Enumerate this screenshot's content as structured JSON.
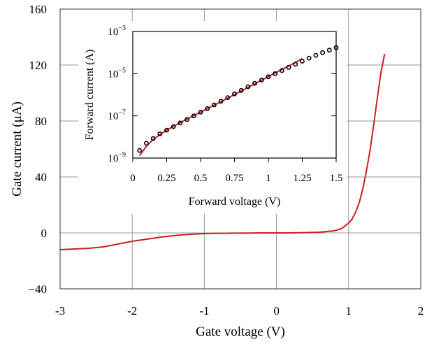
{
  "chart_data": [
    {
      "type": "line",
      "title": "",
      "xlabel": "Gate voltage (V)",
      "ylabel": "Gate current (μA)",
      "xlim": [
        -3,
        2
      ],
      "ylim": [
        -40,
        160
      ],
      "x_ticks": [
        -3,
        -2,
        -1,
        0,
        1,
        2
      ],
      "x_tick_labels": [
        "-3",
        "-2",
        "-1",
        "0",
        "1",
        "2"
      ],
      "y_ticks": [
        -40,
        0,
        40,
        80,
        120,
        160
      ],
      "y_tick_labels": [
        "−40",
        "0",
        "40",
        "80",
        "120",
        "160"
      ],
      "grid": true,
      "colors": {
        "line": "#cc1f1f",
        "grid": "#9a9a9a",
        "axis": "#555555"
      },
      "series": [
        {
          "x": [
            -3.0,
            -2.8,
            -2.6,
            -2.4,
            -2.2,
            -2.0,
            -1.8,
            -1.6,
            -1.4,
            -1.2,
            -1.0,
            -0.8,
            -0.6,
            -0.4,
            -0.2,
            0.0,
            0.2,
            0.4,
            0.6,
            0.8,
            0.9,
            1.0,
            1.05,
            1.1,
            1.15,
            1.2,
            1.25,
            1.3,
            1.35,
            1.4,
            1.45,
            1.5
          ],
          "y": [
            -12,
            -11.5,
            -11,
            -10,
            -8,
            -6,
            -4.5,
            -3,
            -1.8,
            -1,
            -0.5,
            -0.3,
            -0.2,
            -0.1,
            0,
            0,
            0,
            0.2,
            0.5,
            1.5,
            3,
            7,
            10,
            15,
            22,
            32,
            45,
            60,
            78,
            97,
            115,
            128
          ]
        }
      ]
    },
    {
      "type": "line",
      "title": "",
      "xlabel": "Forward voltage (V)",
      "ylabel": "Forward current (A)",
      "xlim": [
        0,
        1.5
      ],
      "ylim": [
        1e-09,
        0.001
      ],
      "y_scale": "log",
      "x_ticks": [
        0,
        0.25,
        0.5,
        0.75,
        1,
        1.25,
        1.5
      ],
      "x_tick_labels": [
        "0",
        "0.25",
        "0.5",
        "0.75",
        "1",
        "1.25",
        "1.5"
      ],
      "y_ticks": [
        1e-09,
        1e-07,
        1e-05,
        0.001
      ],
      "y_tick_labels": [
        {
          "base": "10",
          "exp": "−9"
        },
        {
          "base": "10",
          "exp": "−7"
        },
        {
          "base": "10",
          "exp": "−5"
        },
        {
          "base": "10",
          "exp": "−3"
        }
      ],
      "grid": false,
      "colors": {
        "line": "#cc1f1f",
        "markers": "#000000"
      },
      "series": [
        {
          "style": "line",
          "x": [
            0.05,
            0.1,
            0.15,
            0.2,
            0.25,
            0.3,
            0.4,
            0.5,
            0.6,
            0.7,
            0.8,
            0.9,
            1.0,
            1.1,
            1.2,
            1.25
          ],
          "y": [
            1.3e-09,
            3.6e-09,
            7.5e-09,
            1.3e-08,
            2.1e-08,
            3.2e-08,
            7e-08,
            1.5e-07,
            3.2e-07,
            7e-07,
            1.5e-06,
            3.3e-06,
            7.2e-06,
            1.6e-05,
            3.4e-05,
            5.2e-05
          ]
        },
        {
          "style": "markers",
          "x": [
            0.05,
            0.1,
            0.15,
            0.2,
            0.25,
            0.3,
            0.35,
            0.4,
            0.45,
            0.5,
            0.55,
            0.6,
            0.65,
            0.7,
            0.75,
            0.8,
            0.85,
            0.9,
            0.95,
            1.0,
            1.05,
            1.1,
            1.15,
            1.2,
            1.25,
            1.3,
            1.35,
            1.4,
            1.45,
            1.5
          ],
          "y": [
            2.3e-09,
            5e-09,
            8.5e-09,
            1.4e-08,
            2.1e-08,
            3.1e-08,
            4.6e-08,
            6.7e-08,
            1e-07,
            1.5e-07,
            2.2e-07,
            3.3e-07,
            4.9e-07,
            7.3e-07,
            1.1e-06,
            1.6e-06,
            2.4e-06,
            3.5e-06,
            5e-06,
            7.1e-06,
            1e-05,
            1.4e-05,
            2e-05,
            2.8e-05,
            3.9e-05,
            5.4e-05,
            7.4e-05,
            0.0001,
            0.00013,
            0.00017
          ]
        }
      ]
    }
  ]
}
